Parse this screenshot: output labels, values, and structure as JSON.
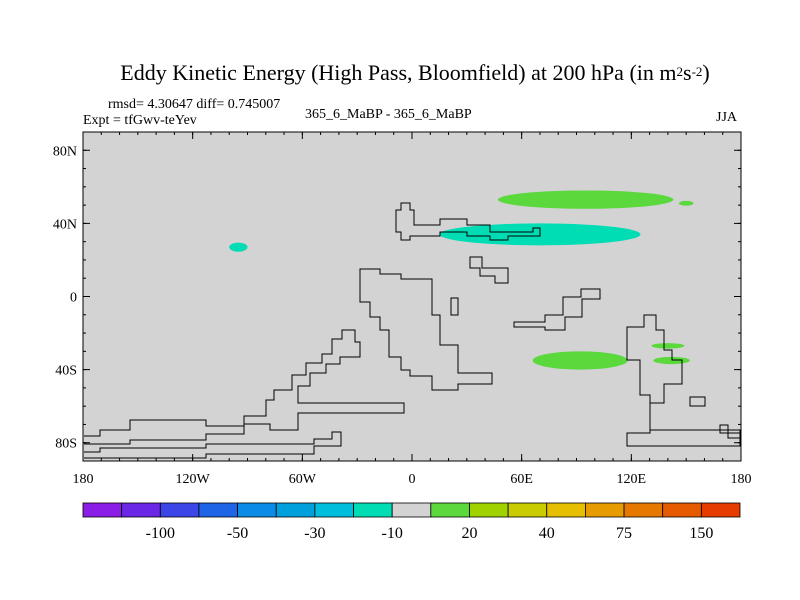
{
  "title_main": "Eddy Kinetic Energy (High Pass, Bloomfield) at 200 hPa (in m",
  "title_sup1": "2",
  "title_mid": "s",
  "title_sup2": "-2",
  "title_end": ")",
  "rmsd_diff": "rmsd= 4.30647 diff= 0.745007",
  "expt": "Expt = tfGwv-teYev",
  "center_label": "365_6_MaBP - 365_6_MaBP",
  "season": "JJA",
  "colors": {
    "land_bg": "#d3d3d3",
    "coast": "#000000",
    "neg_cyan": "#00dcb4",
    "pos_green": "#5ad83c"
  },
  "chart_data": {
    "type": "heatmap",
    "title": "Eddy Kinetic Energy (High Pass, Bloomfield) at 200 hPa (in m^2 s^-2)",
    "xlabel": "",
    "ylabel": "",
    "xlim": [
      -180,
      180
    ],
    "ylim": [
      -90,
      90
    ],
    "x_ticks": [
      {
        "lon": -180,
        "label": "180"
      },
      {
        "lon": -120,
        "label": "120W"
      },
      {
        "lon": -60,
        "label": "60W"
      },
      {
        "lon": 0,
        "label": "0"
      },
      {
        "lon": 60,
        "label": "60E"
      },
      {
        "lon": 120,
        "label": "120E"
      },
      {
        "lon": 180,
        "label": "180"
      }
    ],
    "y_ticks": [
      {
        "lat": 80,
        "label": "80N"
      },
      {
        "lat": 40,
        "label": "40N"
      },
      {
        "lat": 0,
        "label": "0"
      },
      {
        "lat": -40,
        "label": "40S"
      },
      {
        "lat": -80,
        "label": "80S"
      }
    ],
    "regions": [
      {
        "name": "green-band-north",
        "sign": "positive",
        "lon": 95,
        "lat": 53,
        "dlon": 48,
        "dlat": 5
      },
      {
        "name": "green-dot-north",
        "sign": "positive",
        "lon": 150,
        "lat": 51,
        "dlon": 4,
        "dlat": 1.3
      },
      {
        "name": "cyan-band-north",
        "sign": "negative",
        "lon": 70,
        "lat": 34,
        "dlon": 55,
        "dlat": 6
      },
      {
        "name": "cyan-spot-pacific",
        "sign": "negative",
        "lon": -95,
        "lat": 27,
        "dlon": 5,
        "dlat": 2.5
      },
      {
        "name": "green-band-south",
        "sign": "positive",
        "lon": 92,
        "lat": -35,
        "dlon": 26,
        "dlat": 5
      },
      {
        "name": "green-spot-south-east",
        "sign": "positive",
        "lon": 140,
        "lat": -27,
        "dlon": 9,
        "dlat": 1.5
      },
      {
        "name": "green-spot-south-east-2",
        "sign": "positive",
        "lon": 142,
        "lat": -35,
        "dlon": 10,
        "dlat": 2
      }
    ],
    "colorbar": {
      "colors": [
        "#8a1ee6",
        "#6a28e6",
        "#3c46e6",
        "#1e64e6",
        "#0a8ce6",
        "#00a0dc",
        "#00bedc",
        "#00dcb4",
        "#d3d3d3",
        "#5ad83c",
        "#a0d200",
        "#c8cc00",
        "#e6c000",
        "#e69c00",
        "#e67800",
        "#e65a00",
        "#e63c00"
      ],
      "labels": [
        {
          "after_box": 2,
          "text": "-100"
        },
        {
          "after_box": 4,
          "text": "-50"
        },
        {
          "after_box": 6,
          "text": "-30"
        },
        {
          "after_box": 8,
          "text": "-10"
        },
        {
          "after_box": 10,
          "text": "20"
        },
        {
          "after_box": 12,
          "text": "40"
        },
        {
          "after_box": 14,
          "text": "75"
        },
        {
          "after_box": 16,
          "text": "150"
        }
      ]
    }
  }
}
